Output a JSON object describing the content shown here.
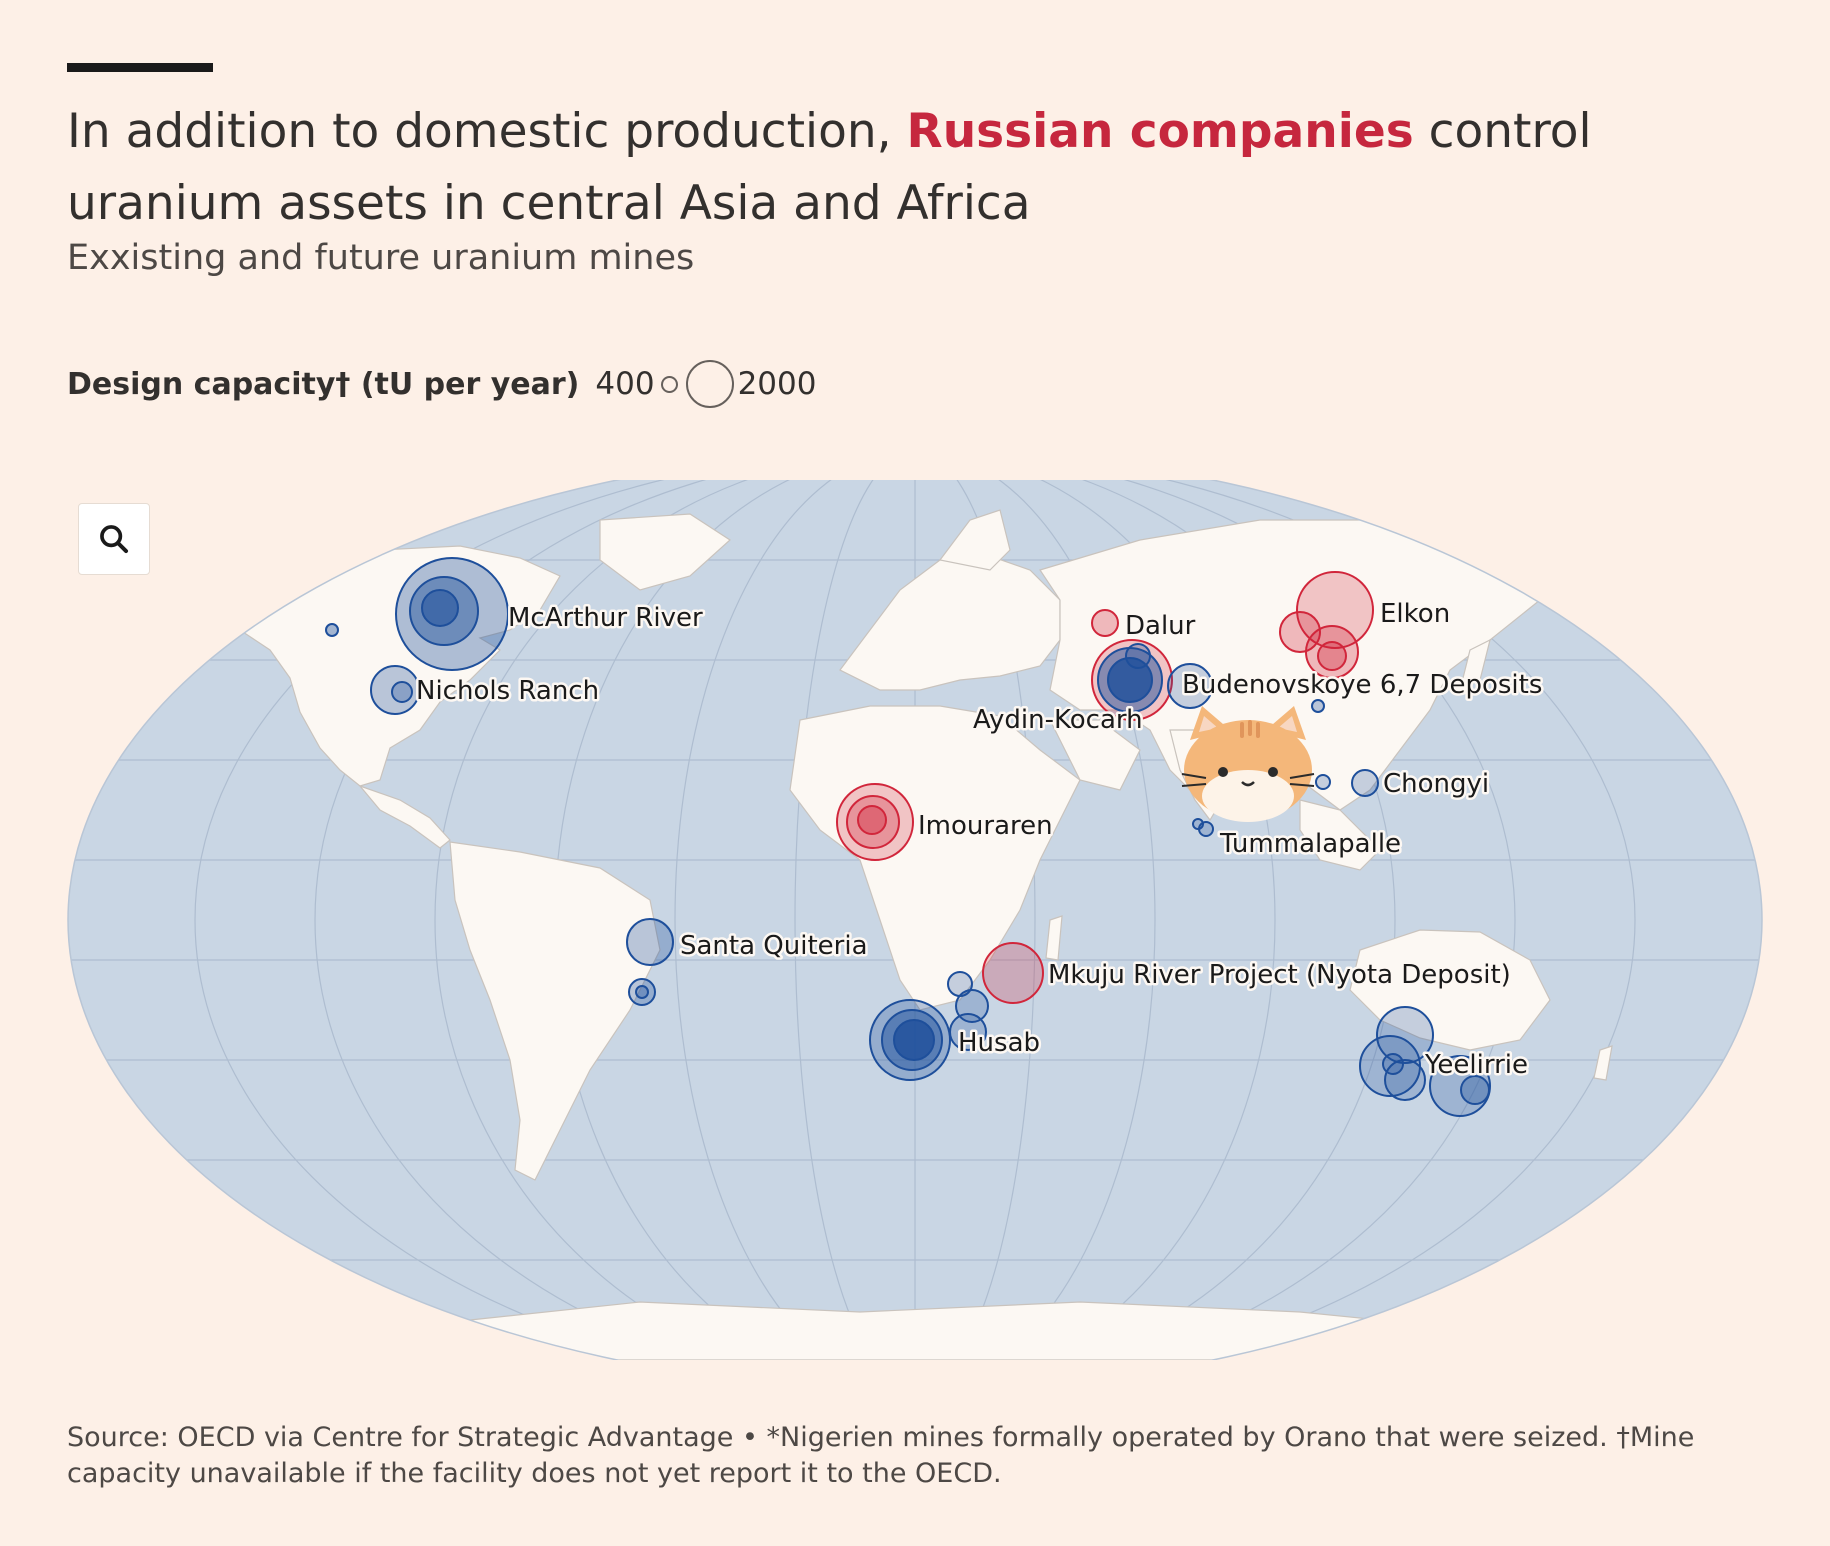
{
  "headline": {
    "before": "In addition to domestic production,",
    "highlight": "Russian companies",
    "after": "control uranium assets in central Asia and Africa"
  },
  "subtitle": "Exxisting and future uranium mines",
  "legend": {
    "title": "Design capacity† (tU per year)",
    "small_value": "400",
    "large_value": "2000"
  },
  "colors": {
    "background": "#fdf0e7",
    "ocean": "#c9d6e4",
    "land": "#fcf8f3",
    "russian": "#d1263b",
    "other": "#1e4f9b",
    "highlight_text": "#c6273e"
  },
  "map": {
    "zoom_icon": "search-icon",
    "mines": [
      {
        "label": "McArthur River",
        "group": "other",
        "capacity_tu": 7000
      },
      {
        "label": "Nichols Ranch",
        "group": "other",
        "capacity_tu": 900
      },
      {
        "label": "Dalur",
        "group": "russian",
        "capacity_tu": 300
      },
      {
        "label": "Elkon",
        "group": "russian",
        "capacity_tu": 5000
      },
      {
        "label": "Budenovskoye 6,7 Deposits",
        "group": "other",
        "capacity_tu": 900
      },
      {
        "label": "Aydin-Kocarh",
        "group": "russian",
        "capacity_tu": 2500
      },
      {
        "label": "Imouraren",
        "group": "russian",
        "capacity_tu": 2500
      },
      {
        "label": "Chongyi",
        "group": "other",
        "capacity_tu": 300
      },
      {
        "label": "Tummalapalle",
        "group": "other",
        "capacity_tu": 100
      },
      {
        "label": "Santa Quiteria",
        "group": "other",
        "capacity_tu": 900
      },
      {
        "label": "Mkuju River Project (Nyota Deposit)",
        "group": "russian",
        "capacity_tu": 1600
      },
      {
        "label": "Husab",
        "group": "other",
        "capacity_tu": 3000
      },
      {
        "label": "Yeelirrie",
        "group": "other",
        "capacity_tu": 1500
      }
    ]
  },
  "source": "Source: OECD via Centre for Strategic Advantage • *Nigerien mines formally operated by Orano that were seized. †Mine capacity unavailable if the facility does not yet report it to the OECD."
}
